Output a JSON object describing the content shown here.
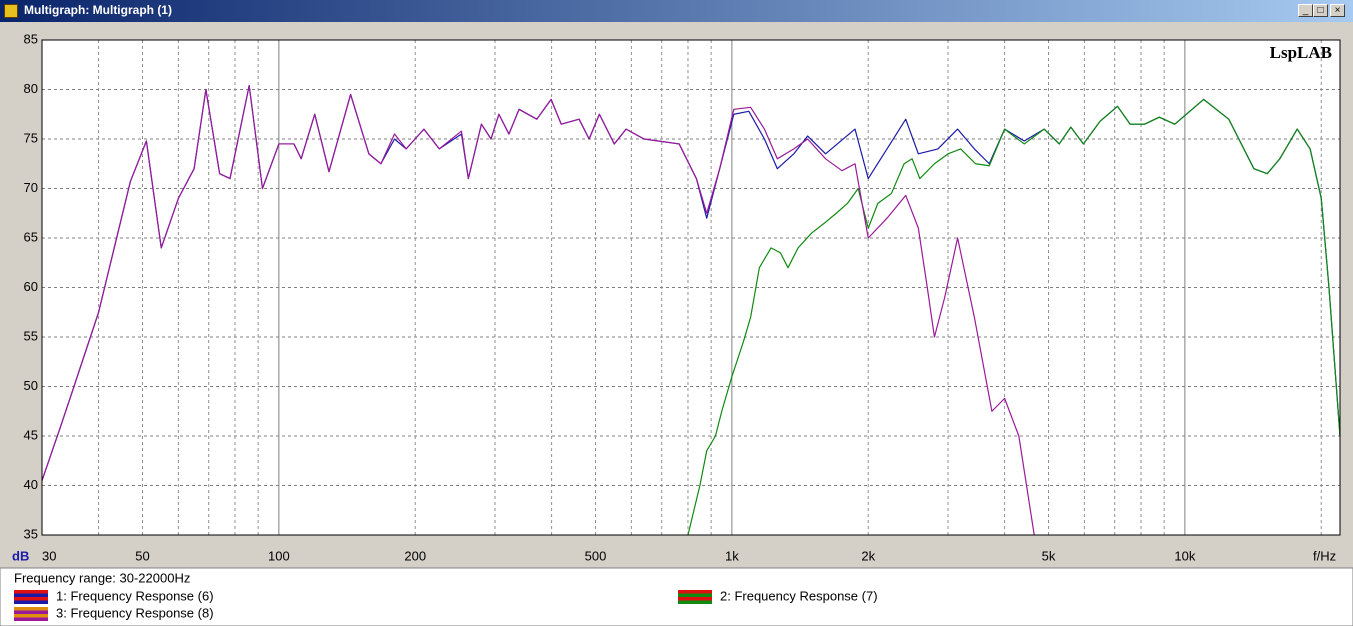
{
  "window_title": "Multigraph: Multigraph (1)",
  "chart_data": {
    "type": "line",
    "watermark": "LspLAB",
    "ylabel": "dB",
    "xlabel": "f/Hz",
    "xscale": "log",
    "xlim": [
      30,
      22000
    ],
    "ylim": [
      35,
      85
    ],
    "xticks": [
      30,
      50,
      100,
      200,
      500,
      {
        "value": 1000,
        "label": "1k"
      },
      {
        "value": 2000,
        "label": "2k"
      },
      {
        "value": 5000,
        "label": "5k"
      },
      {
        "value": 10000,
        "label": "10k"
      }
    ],
    "xgrid_minor": [
      40,
      60,
      70,
      80,
      90,
      300,
      400,
      600,
      700,
      800,
      900,
      3000,
      4000,
      6000,
      7000,
      8000,
      9000,
      20000
    ],
    "yticks": [
      35,
      40,
      45,
      50,
      55,
      60,
      65,
      70,
      75,
      80,
      85
    ],
    "grid": true,
    "legend": "bottom",
    "legend_title": "Frequency range: 30-22000Hz",
    "series": [
      {
        "name": "1: Frequency Response (6)",
        "color": "#1a1aa8",
        "accent": "#e01010",
        "x": [
          30,
          33,
          35,
          40,
          47,
          51,
          55,
          60,
          65,
          69,
          74,
          78,
          86,
          92,
          100,
          108,
          112,
          120,
          129,
          144,
          158,
          168,
          180,
          191,
          209,
          226,
          253,
          262,
          280,
          294,
          306,
          322,
          339,
          371,
          399,
          420,
          460,
          484,
          510,
          550,
          584,
          640,
          765,
          835,
          880,
          940,
          1010,
          1090,
          1180,
          1260,
          1370,
          1470,
          1610,
          1870,
          2000,
          2200,
          2420,
          2580,
          2850,
          3150,
          3430,
          3700,
          4000,
          4420,
          4890,
          5280,
          5600,
          5970,
          6500,
          7100,
          7570,
          8150,
          8780,
          9500,
          11000,
          12500,
          14200,
          15200,
          16200,
          17700,
          18900,
          20000,
          20800,
          22000
        ],
        "values": [
          40.5,
          46,
          49.5,
          57.5,
          70.7,
          74.8,
          64,
          69,
          72,
          80,
          71.5,
          71,
          80.4,
          70,
          74.5,
          74.5,
          73,
          77.5,
          71.7,
          79.5,
          73.5,
          72.5,
          75,
          74,
          76,
          74,
          75.5,
          71,
          76.5,
          75,
          77.5,
          75.5,
          78,
          77,
          79,
          76.5,
          77,
          75,
          77.5,
          74.5,
          76,
          75,
          74.5,
          71,
          67,
          72,
          77.5,
          77.8,
          75,
          72,
          73.5,
          75.3,
          73.5,
          76,
          71,
          74,
          77,
          73.5,
          74,
          76,
          74,
          72.5,
          76,
          74.8,
          76,
          74.5,
          76.2,
          74.5,
          76.8,
          78.3,
          76.5,
          76.5,
          77.2,
          76.5,
          79,
          77,
          72,
          71.5,
          73,
          76,
          74,
          69,
          60,
          45
        ]
      },
      {
        "name": "2: Frequency Response (7)",
        "color": "#108a10",
        "accent": "#e01010",
        "x": [
          800,
          850,
          880,
          920,
          950,
          1000,
          1060,
          1100,
          1150,
          1220,
          1280,
          1330,
          1400,
          1500,
          1600,
          1700,
          1800,
          1900,
          2000,
          2100,
          2250,
          2400,
          2500,
          2600,
          2800,
          3000,
          3200,
          3450,
          3700,
          4000,
          4420,
          4890,
          5280,
          5600,
          5970,
          6500,
          7100,
          7570,
          8150,
          8780,
          9500,
          11000,
          12500,
          14200,
          15200,
          16200,
          17700,
          18900,
          20000,
          20800,
          22000
        ],
        "values": [
          35,
          40,
          43.5,
          45,
          47.5,
          51,
          54.5,
          57,
          62,
          64,
          63.5,
          62,
          64,
          65.5,
          66.5,
          67.5,
          68.5,
          70,
          66,
          68.5,
          69.5,
          72.5,
          73,
          71,
          72.5,
          73.5,
          74,
          72.5,
          72.3,
          76,
          74.5,
          76,
          74.5,
          76.2,
          74.5,
          76.8,
          78.3,
          76.5,
          76.5,
          77.2,
          76.5,
          79,
          77,
          72,
          71.5,
          73,
          76,
          74,
          69,
          60,
          45
        ]
      },
      {
        "name": "3: Frequency Response (8)",
        "color": "#9a1a9a",
        "accent": "#e09010",
        "x": [
          30,
          33,
          35,
          40,
          47,
          51,
          55,
          60,
          65,
          69,
          74,
          78,
          86,
          92,
          100,
          108,
          112,
          120,
          129,
          144,
          158,
          168,
          180,
          191,
          209,
          226,
          253,
          262,
          280,
          294,
          306,
          322,
          339,
          371,
          399,
          420,
          460,
          484,
          510,
          550,
          584,
          640,
          765,
          835,
          880,
          940,
          1010,
          1100,
          1180,
          1260,
          1370,
          1470,
          1610,
          1750,
          1870,
          2000,
          2200,
          2420,
          2580,
          2700,
          2800,
          2950,
          3150,
          3430,
          3750,
          4000,
          4300,
          4650
        ],
        "values": [
          40.5,
          46,
          49.5,
          57.5,
          70.7,
          74.8,
          64,
          69,
          72,
          80,
          71.5,
          71,
          80.4,
          70,
          74.5,
          74.5,
          73,
          77.5,
          71.7,
          79.5,
          73.5,
          72.5,
          75.5,
          74,
          76,
          74,
          75.8,
          71,
          76.5,
          75,
          77.5,
          75.5,
          78,
          77,
          79,
          76.5,
          77,
          75,
          77.5,
          74.5,
          76,
          75,
          74.5,
          71,
          67.5,
          72,
          78,
          78.2,
          76,
          73,
          74,
          75,
          73,
          71.8,
          72.5,
          65,
          67,
          69.3,
          66,
          60,
          55,
          59,
          65,
          57,
          47.5,
          48.8,
          45,
          35
        ]
      }
    ]
  }
}
